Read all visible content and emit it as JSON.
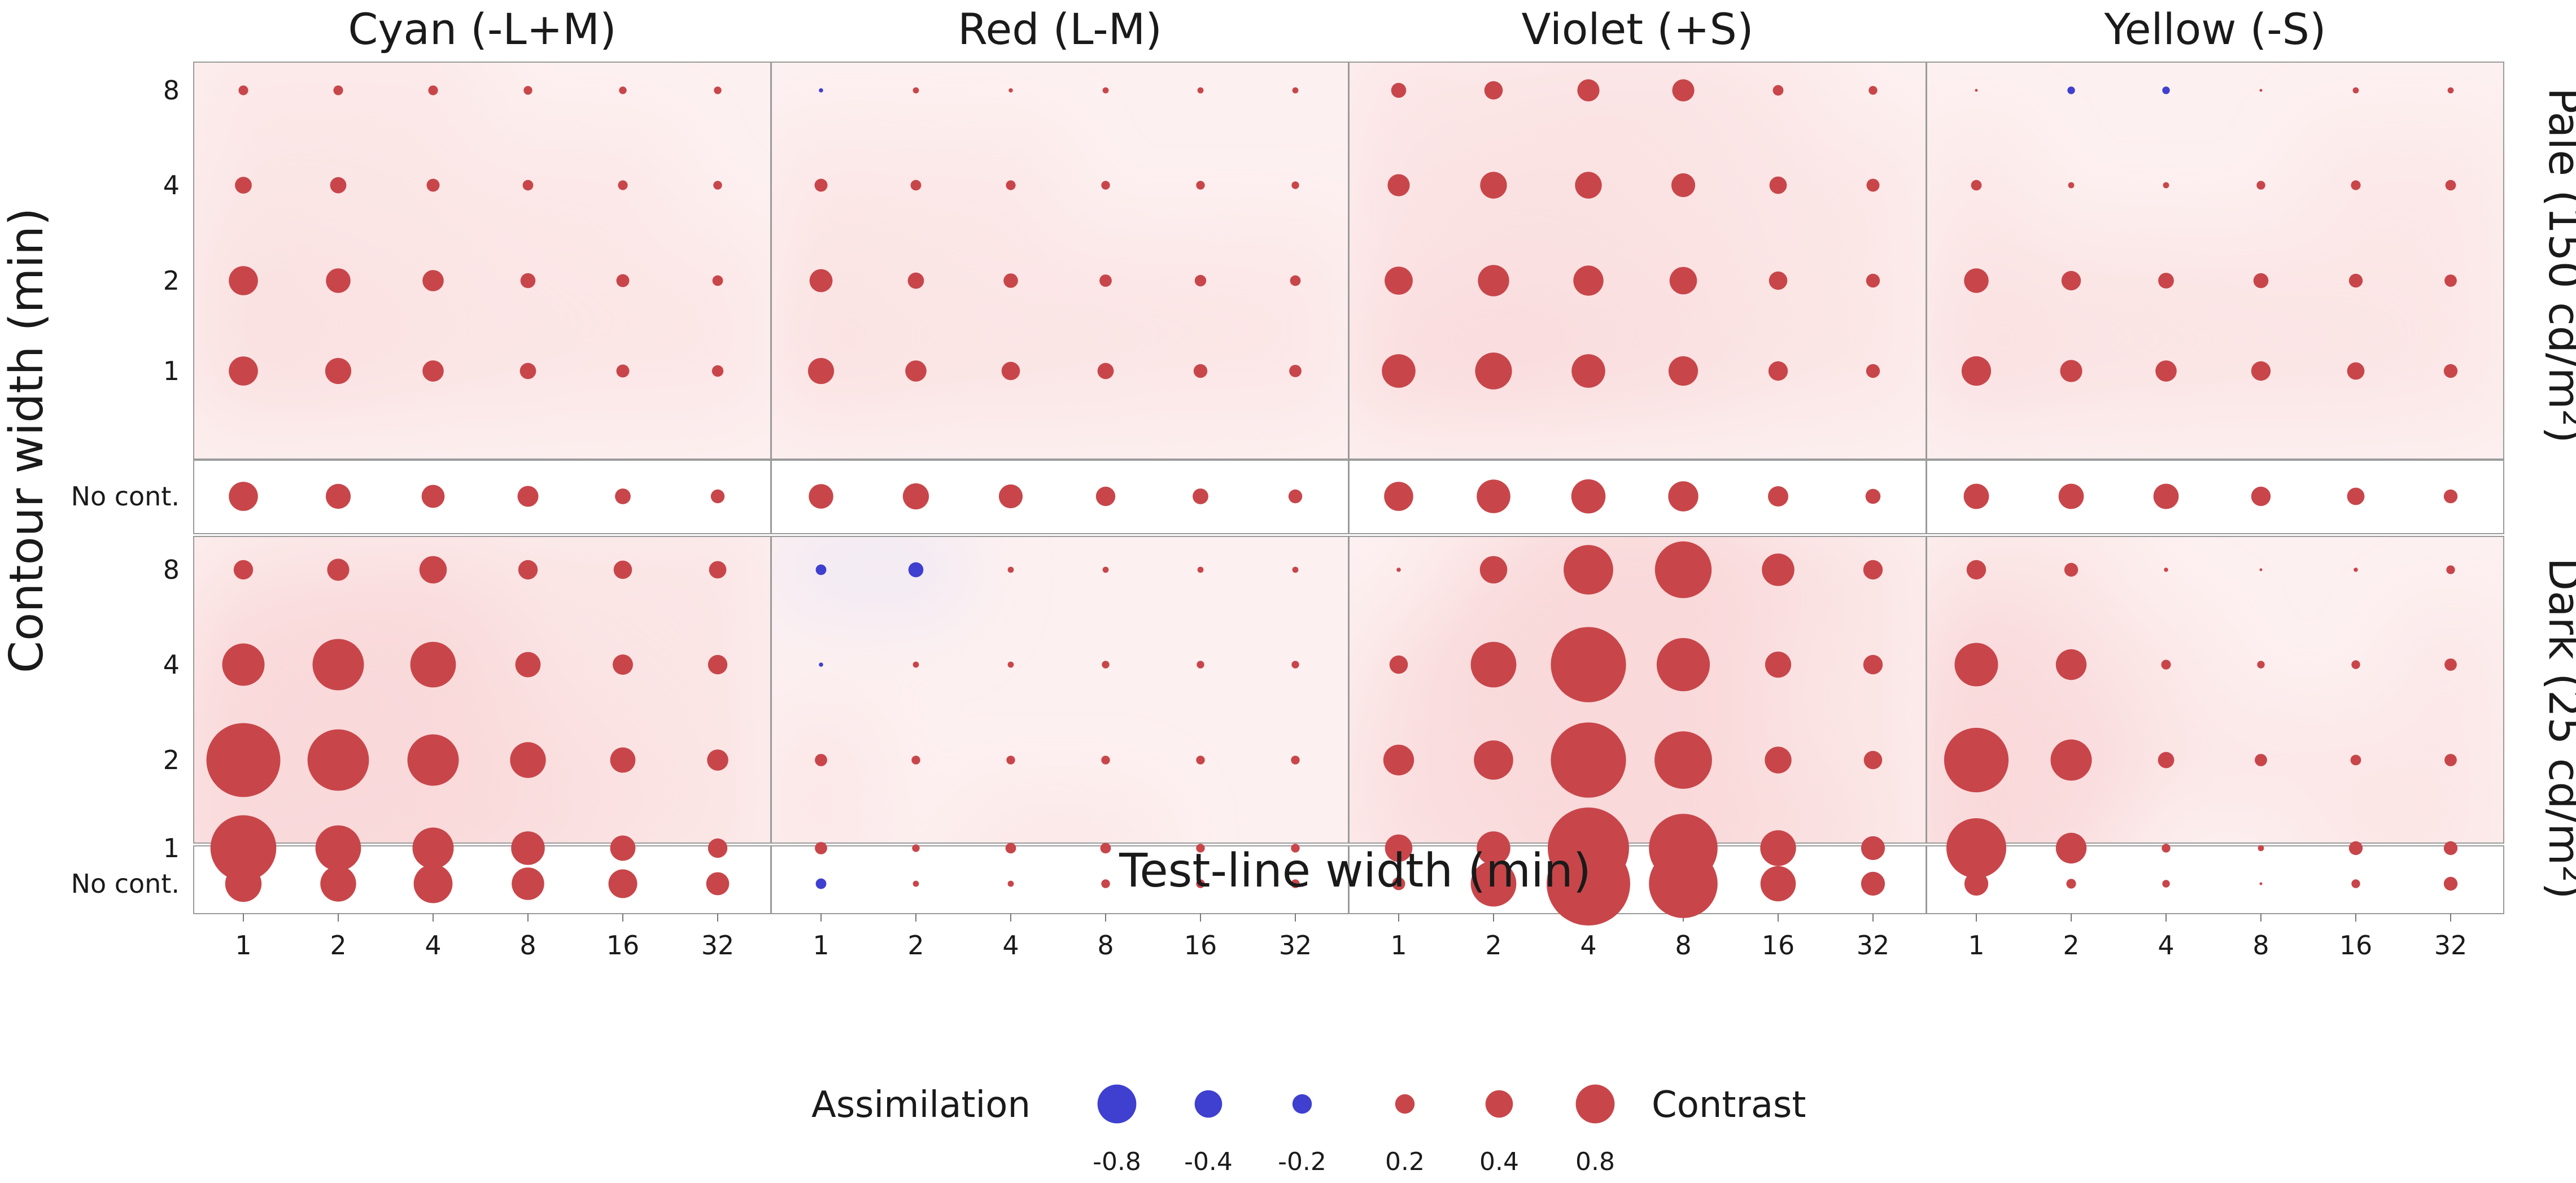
{
  "chart_data": {
    "type": "scatter",
    "subtype": "bubble-grid-with-contour-background",
    "xlabel": "Test-line width (min)",
    "ylabel": "Contour width (min)",
    "x_ticks": [
      "1",
      "2",
      "4",
      "8",
      "16",
      "32"
    ],
    "y_ticks": [
      "1",
      "2",
      "4",
      "8"
    ],
    "no_contour_label": "No cont.",
    "columns": [
      "Cyan (-L+M)",
      "Red (L-M)",
      "Violet (+S)",
      "Yellow (-S)"
    ],
    "rows": [
      "Pale (150 cd/m²)",
      "Dark (25 cd/m²)"
    ],
    "value_encoding": "circle area ∝ |value|; red = contrast (positive), blue = assimilation (negative)",
    "colors": {
      "contrast": "#c8464a",
      "assimilation": "#3f3fd0",
      "contrast_bg": "#f9d9da",
      "assimilation_bg": "#dfe2fb"
    },
    "panels": [
      {
        "row": "Pale (150 cd/m²)",
        "column": "Cyan (-L+M)",
        "contour_rows": [
          [
            0.05,
            0.05,
            0.05,
            0.04,
            0.03,
            0.03
          ],
          [
            0.15,
            0.14,
            0.09,
            0.06,
            0.05,
            0.04
          ],
          [
            0.45,
            0.32,
            0.24,
            0.12,
            0.09,
            0.06
          ],
          [
            0.45,
            0.36,
            0.24,
            0.14,
            0.09,
            0.07
          ]
        ],
        "no_contour": [
          0.45,
          0.33,
          0.28,
          0.23,
          0.13,
          0.1
        ]
      },
      {
        "row": "Pale (150 cd/m²)",
        "column": "Red (L-M)",
        "contour_rows": [
          [
            -0.01,
            0.02,
            0.01,
            0.02,
            0.02,
            0.02
          ],
          [
            0.09,
            0.06,
            0.05,
            0.04,
            0.04,
            0.03
          ],
          [
            0.28,
            0.14,
            0.11,
            0.08,
            0.07,
            0.06
          ],
          [
            0.36,
            0.24,
            0.18,
            0.14,
            0.1,
            0.08
          ]
        ],
        "no_contour": [
          0.32,
          0.36,
          0.3,
          0.2,
          0.13,
          0.1
        ]
      },
      {
        "row": "Pale (150 cd/m²)",
        "column": "Violet (+S)",
        "contour_rows": [
          [
            0.12,
            0.18,
            0.26,
            0.26,
            0.06,
            0.04
          ],
          [
            0.26,
            0.38,
            0.38,
            0.3,
            0.16,
            0.09
          ],
          [
            0.42,
            0.52,
            0.48,
            0.4,
            0.18,
            0.1
          ],
          [
            0.6,
            0.72,
            0.6,
            0.46,
            0.2,
            0.1
          ]
        ],
        "no_contour": [
          0.45,
          0.6,
          0.62,
          0.48,
          0.22,
          0.12
        ]
      },
      {
        "row": "Pale (150 cd/m²)",
        "column": "Yellow (-S)",
        "contour_rows": [
          [
            0.0,
            -0.03,
            -0.03,
            0.0,
            0.02,
            0.02
          ],
          [
            0.06,
            0.02,
            0.02,
            0.04,
            0.05,
            0.06
          ],
          [
            0.32,
            0.2,
            0.13,
            0.12,
            0.1,
            0.08
          ],
          [
            0.46,
            0.26,
            0.24,
            0.2,
            0.16,
            0.1
          ]
        ],
        "no_contour": [
          0.34,
          0.34,
          0.34,
          0.2,
          0.16,
          0.1
        ]
      },
      {
        "row": "Dark (25 cd/m²)",
        "column": "Cyan (-L+M)",
        "contour_rows": [
          [
            0.2,
            0.26,
            0.4,
            0.2,
            0.18,
            0.16
          ],
          [
            0.95,
            1.4,
            1.1,
            0.34,
            0.22,
            0.2
          ],
          [
            2.9,
            2.0,
            1.4,
            0.68,
            0.34,
            0.24
          ],
          [
            2.3,
            1.1,
            0.9,
            0.6,
            0.34,
            0.2
          ]
        ],
        "no_contour": [
          0.7,
          0.68,
          0.8,
          0.56,
          0.44,
          0.28
        ]
      },
      {
        "row": "Dark (25 cd/m²)",
        "column": "Red (L-M)",
        "contour_rows": [
          [
            -0.06,
            -0.12,
            0.02,
            0.02,
            0.02,
            0.02
          ],
          [
            -0.01,
            0.02,
            0.02,
            0.03,
            0.03,
            0.03
          ],
          [
            0.08,
            0.04,
            0.04,
            0.04,
            0.04,
            0.04
          ],
          [
            0.08,
            0.03,
            0.06,
            0.06,
            0.04,
            0.04
          ]
        ],
        "no_contour": [
          -0.06,
          0.02,
          0.02,
          0.04,
          0.04,
          0.04
        ]
      },
      {
        "row": "Dark (25 cd/m²)",
        "column": "Violet (+S)",
        "contour_rows": [
          [
            0.01,
            0.4,
            1.3,
            1.7,
            0.56,
            0.2
          ],
          [
            0.18,
            1.1,
            3.0,
            1.5,
            0.36,
            0.2
          ],
          [
            0.5,
            0.82,
            3.0,
            1.75,
            0.38,
            0.18
          ],
          [
            0.4,
            0.6,
            3.5,
            2.5,
            0.68,
            0.3
          ]
        ],
        "no_contour": [
          0.09,
          1.1,
          3.7,
          2.5,
          0.66,
          0.3
        ]
      },
      {
        "row": "Dark (25 cd/m²)",
        "column": "Yellow (-S)",
        "contour_rows": [
          [
            0.2,
            0.1,
            0.01,
            0.0,
            0.01,
            0.04
          ],
          [
            1.0,
            0.5,
            0.05,
            0.03,
            0.04,
            0.08
          ],
          [
            2.2,
            0.9,
            0.14,
            0.08,
            0.06,
            0.08
          ],
          [
            1.9,
            0.5,
            0.04,
            0.02,
            0.1,
            0.1
          ]
        ],
        "no_contour": [
          0.3,
          0.05,
          0.03,
          0.0,
          0.04,
          0.1
        ]
      }
    ],
    "legend": {
      "left_label": "Assimilation",
      "right_label": "Contrast",
      "items": [
        {
          "value": -0.8,
          "label": "-0.8"
        },
        {
          "value": -0.4,
          "label": "-0.4"
        },
        {
          "value": -0.2,
          "label": "-0.2"
        },
        {
          "value": 0.2,
          "label": "0.2"
        },
        {
          "value": 0.4,
          "label": "0.4"
        },
        {
          "value": 0.8,
          "label": "0.8"
        }
      ]
    }
  }
}
